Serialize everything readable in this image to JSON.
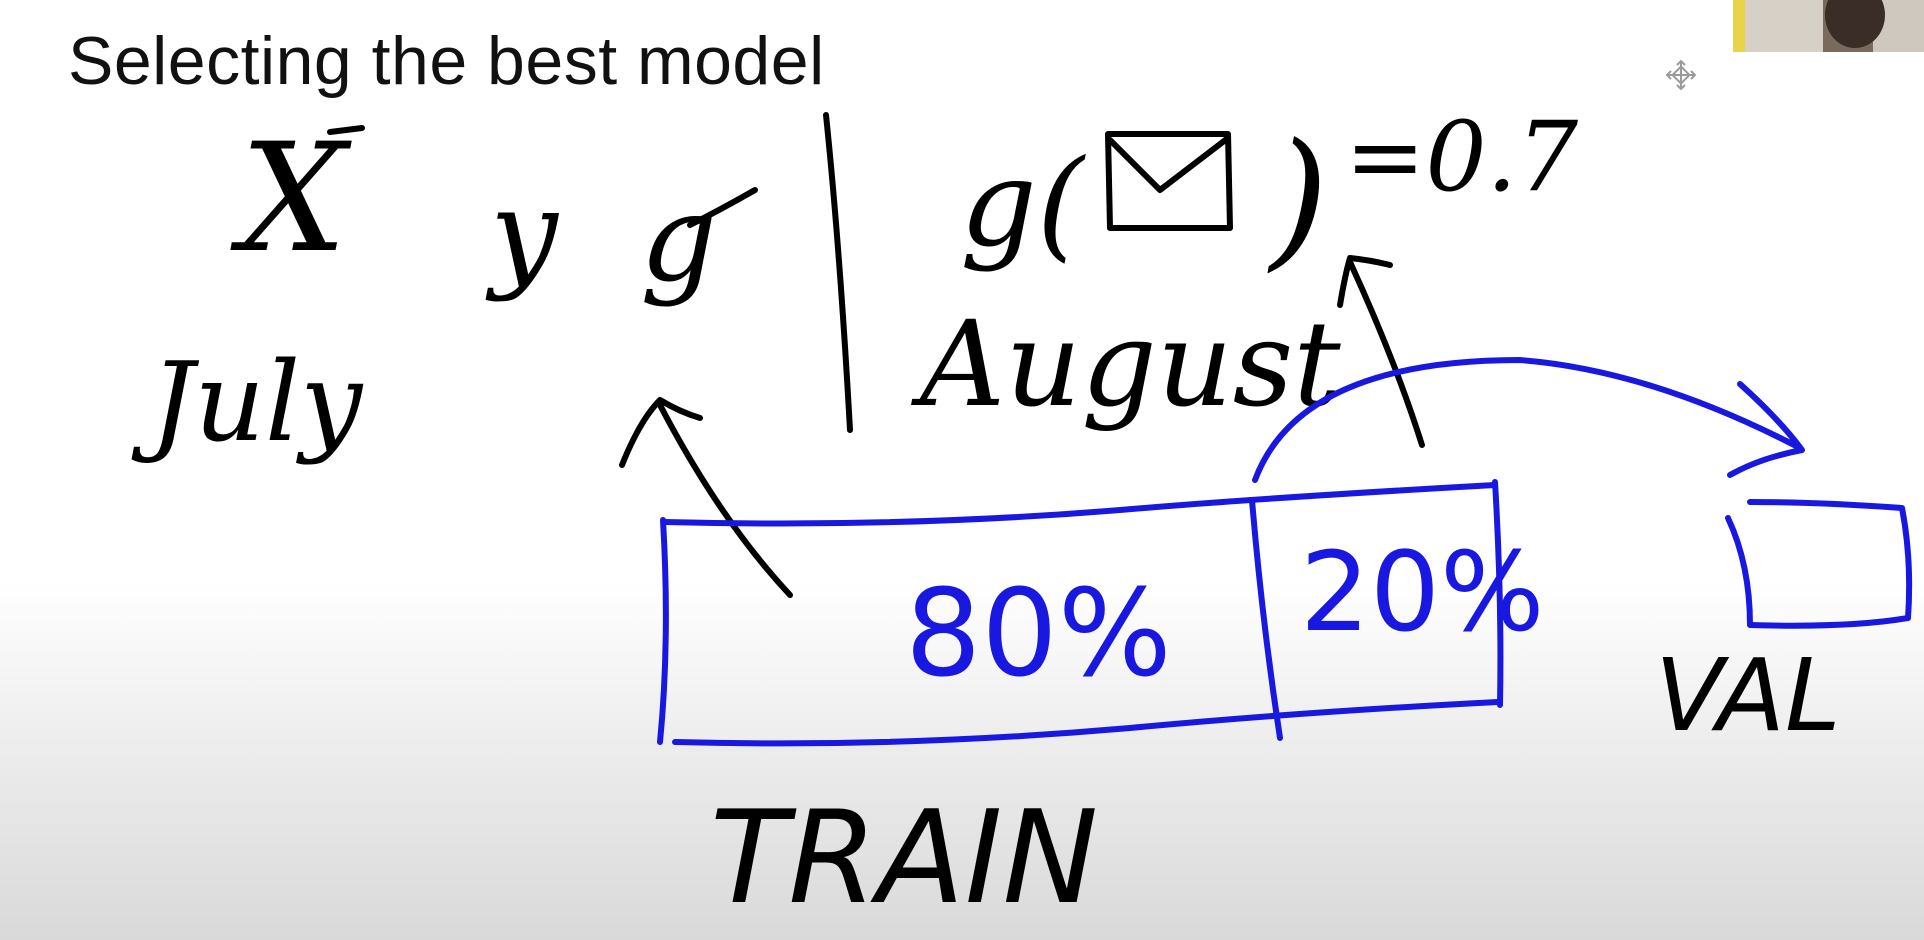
{
  "slide": {
    "title": "Selecting the best model"
  },
  "notes": {
    "x_label": "X",
    "y_label": "y",
    "g_label": "g",
    "july_label": "July",
    "august_label": "August",
    "prediction_prefix": "g(",
    "prediction_suffix": ")",
    "prediction_value": "=0.7",
    "train_label": "TRAIN",
    "train_pct": "80%",
    "val_pct": "20%",
    "val_label": "VAL"
  },
  "colors": {
    "ink_black": "#000000",
    "ink_blue": "#1818e0"
  },
  "icons": {
    "envelope": "envelope-icon",
    "move": "move-icon",
    "webcam": "webcam-feed"
  }
}
